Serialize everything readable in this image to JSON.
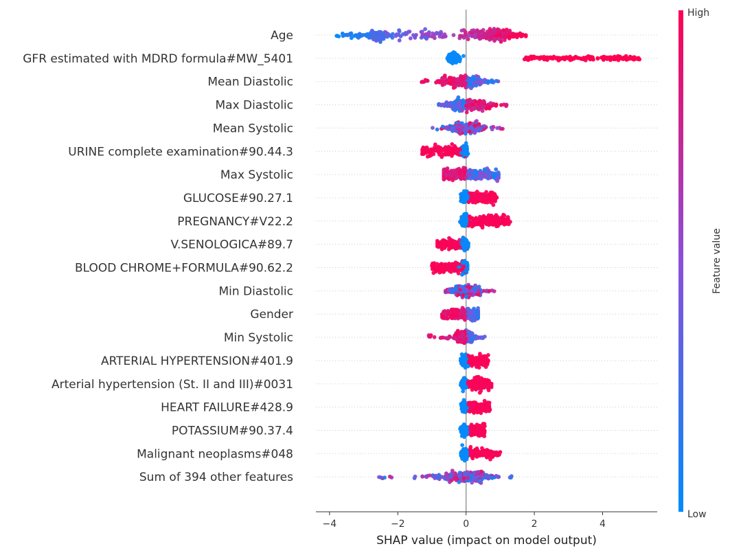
{
  "chart_data": {
    "type": "scatter",
    "subtype": "shap-beeswarm",
    "title": "",
    "xlabel": "SHAP value (impact on model output)",
    "xlim": [
      -4.4,
      5.6
    ],
    "xticks": [
      -4,
      -2,
      0,
      2,
      4
    ],
    "xtick_labels": [
      "−4",
      "−2",
      "0",
      "2",
      "4"
    ],
    "grid": false,
    "colorbar": {
      "title": "Feature value",
      "high_label": "High",
      "low_label": "Low",
      "low_color": "#008bfb",
      "mid_color": "#8b4fd8",
      "high_color": "#ff0052",
      "placement": "right"
    },
    "missing_color": "#777777",
    "features": [
      {
        "name": "Age",
        "min": -4.0,
        "max": 1.75,
        "core_min": -2.8,
        "core_max": 1.3,
        "mode": "age"
      },
      {
        "name": "GFR estimated with MDRD formula#MW_5401",
        "min": -0.55,
        "max": 5.1,
        "core_min": -0.55,
        "core_max": -0.15,
        "mode": "gfr"
      },
      {
        "name": "Mean Diastolic",
        "min": -1.3,
        "max": 1.0,
        "core_min": -0.7,
        "core_max": 0.4,
        "mode": "neg-high"
      },
      {
        "name": "Max Diastolic",
        "min": -0.8,
        "max": 1.2,
        "core_min": -0.4,
        "core_max": 0.7,
        "mode": "pos-high"
      },
      {
        "name": "Mean Systolic",
        "min": -1.1,
        "max": 1.1,
        "core_min": -0.4,
        "core_max": 0.4,
        "mode": "mixed"
      },
      {
        "name": "URINE complete examination#90.44.3",
        "min": -1.3,
        "max": 0.2,
        "core_min": -1.3,
        "core_max": 0.2,
        "mode": "neg-block"
      },
      {
        "name": "Max Systolic",
        "min": -0.65,
        "max": 0.95,
        "core_min": -0.65,
        "core_max": 0.95,
        "mode": "neg-high"
      },
      {
        "name": "GLUCOSE#90.27.1",
        "min": -0.25,
        "max": 0.9,
        "core_min": -0.25,
        "core_max": 0.9,
        "mode": "pos-block"
      },
      {
        "name": "PREGNANCY#V22.2",
        "min": -0.45,
        "max": 1.3,
        "core_min": -0.45,
        "core_max": 1.3,
        "mode": "pos-block"
      },
      {
        "name": "V.SENOLOGICA#89.7",
        "min": -0.85,
        "max": 0.1,
        "core_min": -0.85,
        "core_max": 0.1,
        "mode": "neg-block"
      },
      {
        "name": "BLOOD CHROME+FORMULA#90.62.2",
        "min": -1.0,
        "max": 0.3,
        "core_min": -1.0,
        "core_max": 0.3,
        "mode": "neg-block"
      },
      {
        "name": "Min Diastolic",
        "min": -0.6,
        "max": 0.85,
        "core_min": -0.3,
        "core_max": 0.5,
        "mode": "mixed"
      },
      {
        "name": "Gender",
        "min": -0.7,
        "max": 0.35,
        "core_min": -0.7,
        "core_max": 0.35,
        "mode": "neg-high"
      },
      {
        "name": "Min Systolic",
        "min": -1.15,
        "max": 0.55,
        "core_min": -0.3,
        "core_max": 0.2,
        "mode": "neg-high"
      },
      {
        "name": "ARTERIAL HYPERTENSION#401.9",
        "min": -0.2,
        "max": 0.65,
        "core_min": -0.2,
        "core_max": 0.65,
        "mode": "pos-block"
      },
      {
        "name": "Arterial hypertension (St. II and III)#0031",
        "min": -0.2,
        "max": 0.75,
        "core_min": -0.2,
        "core_max": 0.75,
        "mode": "pos-block"
      },
      {
        "name": "HEART FAILURE#428.9",
        "min": -0.15,
        "max": 0.7,
        "core_min": -0.15,
        "core_max": 0.7,
        "mode": "pos-block"
      },
      {
        "name": "POTASSIUM#90.37.4",
        "min": -0.25,
        "max": 0.55,
        "core_min": -0.25,
        "core_max": 0.55,
        "mode": "pos-block"
      },
      {
        "name": "Malignant neoplasms#048",
        "min": -0.15,
        "max": 1.0,
        "core_min": -0.15,
        "core_max": 0.8,
        "mode": "pos-block"
      },
      {
        "name": "Sum of 394 other features",
        "min": -2.7,
        "max": 1.4,
        "core_min": -0.8,
        "core_max": 0.5,
        "mode": "mixed"
      }
    ]
  }
}
